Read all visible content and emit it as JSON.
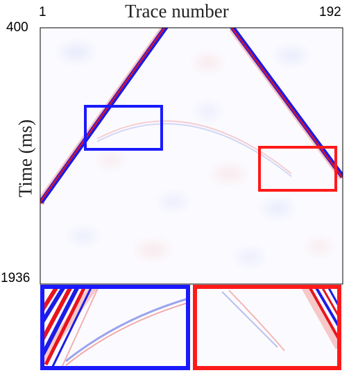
{
  "title": "Trace number",
  "ylabel": "Time (ms)",
  "x_axis": {
    "left_label": "1",
    "right_label": "192"
  },
  "y_axis": {
    "top_label": "400",
    "bottom_label": "1936"
  },
  "colors": {
    "positive": "#e8141c",
    "negative": "#1c1ce6",
    "box_blue": "#1a1aff",
    "box_red": "#ff1a1a"
  },
  "inset_panels": [
    {
      "name": "blue-box-zoom",
      "border_color": "#1a1aff"
    },
    {
      "name": "red-box-zoom",
      "border_color": "#ff1a1a"
    }
  ]
}
